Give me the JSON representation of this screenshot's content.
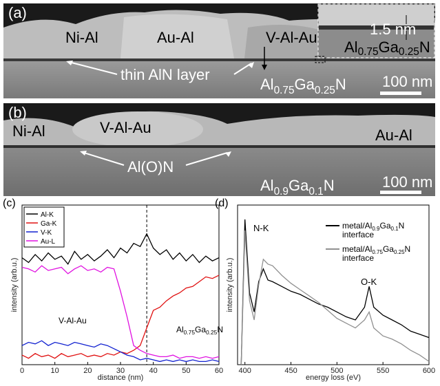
{
  "images": [
    {
      "label": "(a)",
      "regions": [
        "Ni-Al",
        "Au-Al",
        "V-Al-Au"
      ],
      "layer_label": "thin AlN layer",
      "substrate": [
        "Al",
        "0.75",
        "Ga",
        "0.25",
        "N"
      ],
      "scale_bar": "100 nm",
      "inset": {
        "thickness": "1.5 nm",
        "substrate": [
          "Al",
          "0.75",
          "Ga",
          "0.25",
          "N"
        ]
      }
    },
    {
      "label": "(b)",
      "regions": [
        "Ni-Al",
        "V-Al-Au",
        "Au-Al"
      ],
      "layer_label": "Al(O)N",
      "substrate": [
        "Al",
        "0.9",
        "Ga",
        "0.1",
        "N"
      ],
      "scale_bar": "100 nm"
    }
  ],
  "chart_data": [
    {
      "type": "line",
      "label": "(c)",
      "xlabel": "distance (nm)",
      "ylabel": "intensity (arb.u.)",
      "xlim": [
        0,
        60
      ],
      "xticks": [
        0,
        10,
        20,
        30,
        40,
        50,
        60
      ],
      "ylim": [
        0,
        10
      ],
      "legend": "upper left",
      "marker_x": 38,
      "annotations": {
        "region": "V-Al-Au",
        "substrate": [
          "Al",
          "0.75",
          "Ga",
          "0.25",
          "N"
        ]
      },
      "x": [
        0,
        2,
        4,
        6,
        8,
        10,
        12,
        14,
        16,
        18,
        20,
        22,
        24,
        26,
        28,
        30,
        32,
        34,
        36,
        38,
        40,
        42,
        44,
        46,
        48,
        50,
        52,
        54,
        56,
        58,
        60
      ],
      "series": [
        {
          "name": "Al-K",
          "color": "#000000",
          "values": [
            6.7,
            6.4,
            6.9,
            6.5,
            7.0,
            6.6,
            6.8,
            6.3,
            7.1,
            6.6,
            6.9,
            6.5,
            6.8,
            7.2,
            6.7,
            7.3,
            7.0,
            7.6,
            7.4,
            8.2,
            7.3,
            6.9,
            7.2,
            6.6,
            7.0,
            6.5,
            6.9,
            6.4,
            6.8,
            6.5,
            6.7
          ]
        },
        {
          "name": "Ga-K",
          "color": "#e01010",
          "values": [
            0.6,
            0.4,
            0.7,
            0.5,
            0.6,
            0.4,
            0.7,
            0.5,
            0.6,
            0.7,
            0.5,
            0.6,
            0.5,
            0.7,
            0.6,
            0.8,
            0.7,
            0.9,
            1.2,
            2.3,
            3.4,
            3.6,
            4.0,
            4.3,
            4.5,
            4.8,
            4.9,
            5.2,
            5.5,
            5.4,
            5.6
          ]
        },
        {
          "name": "V-K",
          "color": "#1020d0",
          "values": [
            1.2,
            1.4,
            1.3,
            1.5,
            1.2,
            1.4,
            1.3,
            1.2,
            1.4,
            1.3,
            1.2,
            1.1,
            1.3,
            1.2,
            1.0,
            0.8,
            0.6,
            0.5,
            0.3,
            0.4,
            0.3,
            0.2,
            0.3,
            0.2,
            0.3,
            0.2,
            0.3,
            0.2,
            0.2,
            0.3,
            0.2
          ]
        },
        {
          "name": "Au-L",
          "color": "#e010e0",
          "values": [
            6.1,
            6.0,
            5.8,
            6.2,
            5.9,
            6.0,
            6.1,
            5.7,
            6.0,
            6.2,
            5.9,
            6.0,
            5.8,
            6.1,
            6.0,
            4.6,
            3.0,
            1.2,
            0.9,
            0.7,
            0.6,
            0.5,
            0.5,
            0.6,
            0.4,
            0.5,
            0.5,
            0.4,
            0.5,
            0.4,
            0.5
          ]
        }
      ]
    },
    {
      "type": "line",
      "label": "(d)",
      "xlabel": "energy loss (eV)",
      "ylabel": "intensity (arb.u.)",
      "xlim": [
        392,
        600
      ],
      "xticks": [
        400,
        450,
        500,
        550,
        600
      ],
      "ylim": [
        0,
        10
      ],
      "legend": "upper right",
      "annotations": {
        "peaks": [
          "N-K",
          "O-K"
        ]
      },
      "x": [
        396,
        400,
        405,
        410,
        415,
        420,
        425,
        430,
        440,
        450,
        460,
        470,
        480,
        490,
        500,
        510,
        520,
        530,
        535,
        540,
        550,
        560,
        570,
        580,
        590,
        600
      ],
      "series": [
        {
          "name_parts": [
            "metal/Al",
            "0.9",
            "Ga",
            "0.1",
            "N"
          ],
          "name_line2": "interface",
          "color": "#000000",
          "values": [
            0,
            9.1,
            4.5,
            3.3,
            5.2,
            6.0,
            5.3,
            5.2,
            4.9,
            4.6,
            4.4,
            4.1,
            3.8,
            3.6,
            3.3,
            3.0,
            2.8,
            3.6,
            4.9,
            3.6,
            3.1,
            2.8,
            2.5,
            2.1,
            1.9,
            1.7
          ]
        },
        {
          "name_parts": [
            "metal/Al",
            "0.75",
            "Ga",
            "0.25",
            "N"
          ],
          "name_line2": "interface",
          "color": "#909090",
          "values": [
            0,
            8.4,
            4.0,
            2.8,
            5.0,
            6.6,
            6.3,
            6.2,
            5.6,
            5.1,
            4.7,
            4.3,
            3.9,
            3.4,
            2.9,
            2.6,
            2.3,
            2.8,
            3.3,
            2.3,
            1.8,
            1.6,
            1.3,
            0.9,
            0.6,
            0.2
          ]
        }
      ]
    }
  ]
}
